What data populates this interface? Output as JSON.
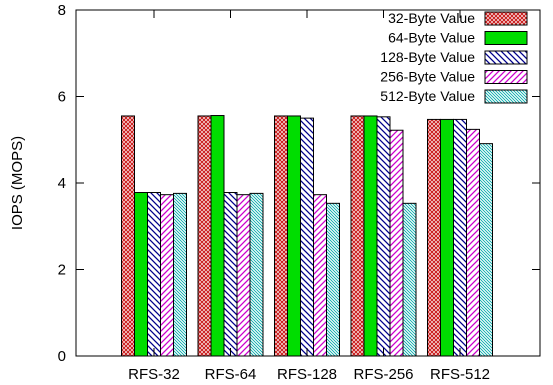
{
  "chart_data": {
    "type": "bar",
    "title": "",
    "xlabel": "",
    "ylabel": "IOPS (MOPS)",
    "ylim": [
      0,
      8
    ],
    "yticks": [
      0,
      2,
      4,
      6,
      8
    ],
    "grid": false,
    "legend_position": "top-right",
    "categories": [
      "RFS-32",
      "RFS-64",
      "RFS-128",
      "RFS-256",
      "RFS-512"
    ],
    "series": [
      {
        "name": "32-Byte Value",
        "pattern": "crosshatch",
        "color": "#cc2222",
        "values": [
          5.55,
          5.55,
          5.55,
          5.55,
          5.47
        ]
      },
      {
        "name": "64-Byte Value",
        "pattern": "solid",
        "color": "#00dd00",
        "values": [
          3.78,
          5.56,
          5.55,
          5.55,
          5.47
        ]
      },
      {
        "name": "128-Byte Value",
        "pattern": "diag-down",
        "color": "#00008b",
        "values": [
          3.78,
          3.78,
          5.5,
          5.53,
          5.47
        ]
      },
      {
        "name": "256-Byte Value",
        "pattern": "diag-up",
        "color": "#cc00cc",
        "values": [
          3.73,
          3.73,
          3.73,
          5.22,
          5.24
        ]
      },
      {
        "name": "512-Byte Value",
        "pattern": "diag-down-fine",
        "color": "#00aaaa",
        "values": [
          3.76,
          3.76,
          3.53,
          3.53,
          4.91
        ]
      }
    ]
  }
}
